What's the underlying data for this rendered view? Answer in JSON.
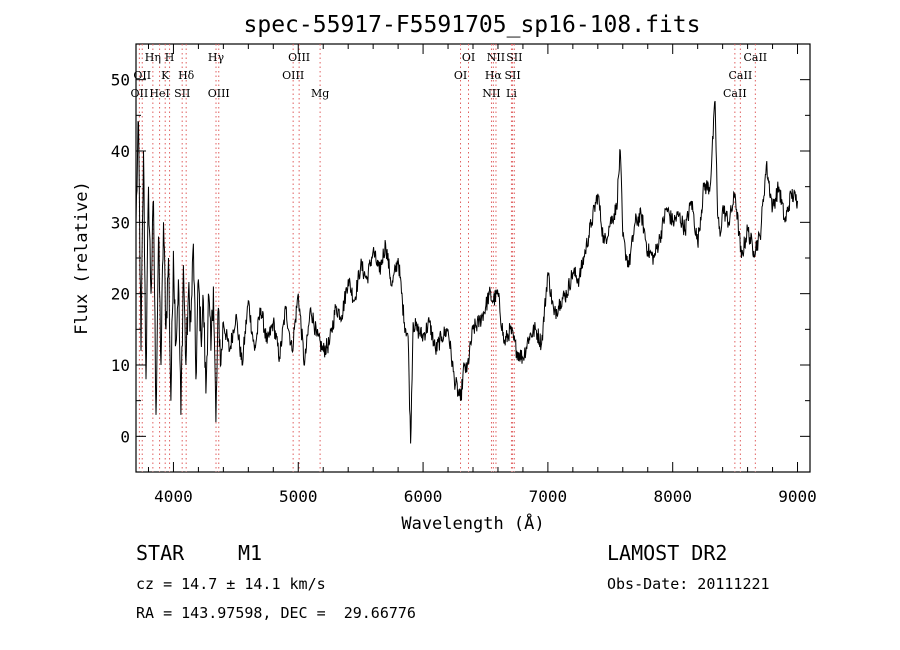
{
  "chart_data": {
    "type": "line",
    "title": "spec-55917-F5591705_sp16-108.fits",
    "xlabel": "Wavelength (Å)",
    "ylabel": "Flux (relative)",
    "xlim": [
      3700,
      9100
    ],
    "ylim": [
      -5,
      55
    ],
    "xticks": [
      4000,
      5000,
      6000,
      7000,
      8000,
      9000
    ],
    "yticks": [
      0,
      10,
      20,
      30,
      40,
      50
    ],
    "grid": false,
    "series": [
      {
        "color": "#000000",
        "x": [
          3700,
          3720,
          3740,
          3760,
          3780,
          3800,
          3820,
          3840,
          3860,
          3880,
          3900,
          3920,
          3940,
          3960,
          3980,
          4000,
          4020,
          4040,
          4060,
          4080,
          4100,
          4120,
          4140,
          4160,
          4180,
          4200,
          4220,
          4240,
          4260,
          4280,
          4300,
          4320,
          4340,
          4360,
          4380,
          4400,
          4450,
          4500,
          4550,
          4600,
          4650,
          4700,
          4750,
          4800,
          4850,
          4900,
          4950,
          5000,
          5050,
          5100,
          5150,
          5200,
          5250,
          5300,
          5350,
          5400,
          5450,
          5500,
          5550,
          5600,
          5650,
          5700,
          5750,
          5800,
          5850,
          5880,
          5900,
          5920,
          5950,
          6000,
          6050,
          6100,
          6150,
          6200,
          6250,
          6300,
          6330,
          6350,
          6400,
          6450,
          6500,
          6530,
          6560,
          6600,
          6650,
          6700,
          6750,
          6800,
          6850,
          6900,
          6950,
          7000,
          7050,
          7100,
          7150,
          7200,
          7250,
          7300,
          7350,
          7400,
          7450,
          7500,
          7550,
          7580,
          7600,
          7620,
          7650,
          7700,
          7750,
          7800,
          7850,
          7900,
          7950,
          8000,
          8050,
          8100,
          8150,
          8200,
          8250,
          8300,
          8340,
          8360,
          8380,
          8400,
          8450,
          8500,
          8550,
          8600,
          8650,
          8700,
          8750,
          8800,
          8850,
          8900,
          8950,
          9000
        ],
        "y": [
          30,
          44,
          12,
          40,
          8,
          35,
          20,
          33,
          3,
          28,
          10,
          30,
          15,
          25,
          5,
          26,
          13,
          22,
          3,
          24,
          10,
          20,
          16,
          27,
          8,
          22,
          14,
          19,
          6,
          20,
          12,
          21,
          2,
          18,
          10,
          16,
          12,
          17,
          10,
          19,
          12,
          18,
          13,
          16,
          11,
          18,
          12,
          20,
          10,
          18,
          14,
          12,
          13,
          18,
          17,
          22,
          19,
          24,
          22,
          26,
          23,
          27,
          21,
          25,
          16,
          14,
          -1,
          16,
          15,
          14,
          16,
          12,
          14,
          15,
          8,
          5,
          10,
          9,
          15,
          16,
          18,
          20,
          19,
          20,
          13,
          15,
          12,
          11,
          14,
          15,
          13,
          23,
          17,
          19,
          20,
          23,
          22,
          26,
          30,
          34,
          27,
          30,
          32,
          40,
          28,
          26,
          24,
          30,
          31,
          26,
          25,
          28,
          32,
          30,
          31,
          29,
          33,
          27,
          35,
          35,
          47,
          31,
          28,
          32,
          30,
          34,
          25,
          29,
          26,
          28,
          38,
          32,
          35,
          30,
          34,
          33
        ]
      }
    ],
    "lines": [
      {
        "name": "OII",
        "x": 3727,
        "row": 3
      },
      {
        "name": "OII",
        "x": 3750,
        "row": 2
      },
      {
        "name": "Hη",
        "x": 3835,
        "row": 1
      },
      {
        "name": "HeI",
        "x": 3889,
        "row": 3
      },
      {
        "name": "K",
        "x": 3934,
        "row": 2
      },
      {
        "name": "H",
        "x": 3969,
        "row": 1
      },
      {
        "name": "SII",
        "x": 4070,
        "row": 3
      },
      {
        "name": "Hδ",
        "x": 4102,
        "row": 2
      },
      {
        "name": "Hγ",
        "x": 4341,
        "row": 1
      },
      {
        "name": "OIII",
        "x": 4363,
        "row": 3
      },
      {
        "name": "OIII",
        "x": 4959,
        "row": 2
      },
      {
        "name": "OIII",
        "x": 5007,
        "row": 1
      },
      {
        "name": "Mg",
        "x": 5175,
        "row": 3
      },
      {
        "name": "OI",
        "x": 6300,
        "row": 2
      },
      {
        "name": "OI",
        "x": 6364,
        "row": 1
      },
      {
        "name": "NII",
        "x": 6548,
        "row": 3
      },
      {
        "name": "Hα",
        "x": 6563,
        "row": 2
      },
      {
        "name": "NII",
        "x": 6584,
        "row": 1
      },
      {
        "name": "Li",
        "x": 6708,
        "row": 3
      },
      {
        "name": "SII",
        "x": 6717,
        "row": 2
      },
      {
        "name": "SII",
        "x": 6731,
        "row": 1
      },
      {
        "name": "CaII",
        "x": 8498,
        "row": 3
      },
      {
        "name": "CaII",
        "x": 8542,
        "row": 2
      },
      {
        "name": "CaII",
        "x": 8662,
        "row": 1
      }
    ]
  },
  "info": {
    "class": "STAR",
    "subclass": "M1",
    "survey": "LAMOST DR2",
    "cz": "cz = 14.7 ± 14.1 km/s",
    "obsdate": "Obs-Date: 20111221",
    "radec": "RA = 143.97598, DEC =  29.66776"
  }
}
